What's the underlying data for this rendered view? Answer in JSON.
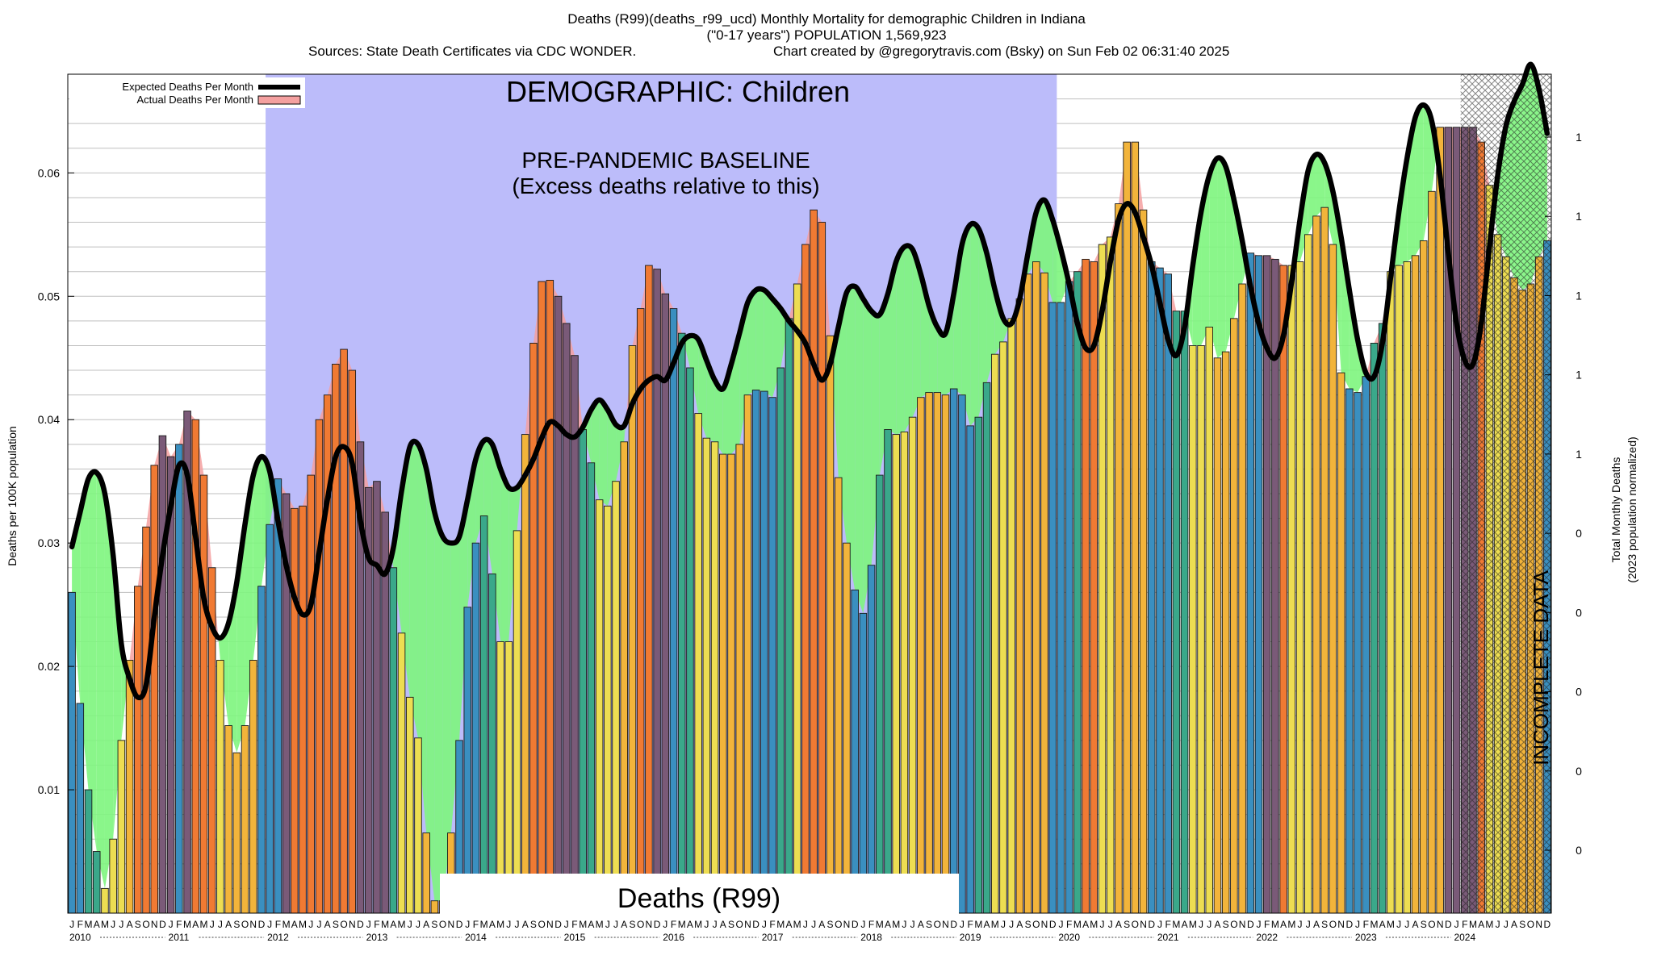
{
  "header": {
    "title": "Deaths (R99)(deaths_r99_ucd) Monthly Mortality for demographic Children in Indiana",
    "subtitle": "(\"0-17 years\") POPULATION 1,569,923",
    "sources": "Sources: State Death Certificates via CDC WONDER.",
    "credit": "Chart created by @gregorytravis.com (Bsky) on Sun Feb 02 06:31:40 2025"
  },
  "legend": {
    "expected_label": "Expected Deaths Per Month",
    "actual_label": "Actual Deaths Per Month",
    "expected_color": "#000000",
    "actual_color": "#f4a0a0"
  },
  "annotations": {
    "demographic": "DEMOGRAPHIC: Children",
    "baseline_line1": "PRE-PANDEMIC BASELINE",
    "baseline_line2": "(Excess deaths relative to this)",
    "cause": "Deaths (R99)",
    "incomplete": "INCOMPLETE DATA"
  },
  "colors": {
    "baseline_band": "#bcbcfa",
    "excess_fill": "#f4a0a0",
    "deficit_fill": "#7df57d",
    "expected_line": "#000000"
  },
  "chart_data": {
    "type": "bar",
    "ylabel": "Deaths per 100K population",
    "y2label_line1": "Total Monthly Deaths",
    "y2label_line2": "(2023 population normalized)",
    "ylim": [
      0,
      0.068
    ],
    "yticks": [
      0.01,
      0.02,
      0.03,
      0.04,
      0.05,
      0.06
    ],
    "ytick_labels": [
      "0.01",
      "0.02",
      "0.03",
      "0.04",
      "0.05",
      "0.06"
    ],
    "y2tick_labels": [
      "1",
      "1",
      "1",
      "1",
      "1",
      "0",
      "0",
      "0",
      "0",
      "0"
    ],
    "month_letters": [
      "J",
      "F",
      "M",
      "A",
      "M",
      "J",
      "J",
      "A",
      "S",
      "O",
      "N",
      "D"
    ],
    "years": [
      "2010",
      "2011",
      "2012",
      "2013",
      "2014",
      "2015",
      "2016",
      "2017",
      "2018",
      "2019",
      "2020",
      "2021",
      "2022",
      "2023",
      "2024"
    ],
    "baseline_period": [
      "2012-01",
      "2019-12"
    ],
    "incomplete_period": [
      "2024-02",
      "2024-12"
    ],
    "actual_deaths_per_100k": [
      0.026,
      0.017,
      0.01,
      0.005,
      0.002,
      0.006,
      0.014,
      0.0205,
      0.0265,
      0.0313,
      0.0363,
      0.0387,
      0.037,
      0.038,
      0.0407,
      0.04,
      0.0355,
      0.028,
      0.0205,
      0.0152,
      0.013,
      0.0152,
      0.0205,
      0.0265,
      0.0315,
      0.0352,
      0.034,
      0.0328,
      0.033,
      0.0355,
      0.04,
      0.042,
      0.0445,
      0.0457,
      0.044,
      0.0382,
      0.0345,
      0.035,
      0.0325,
      0.028,
      0.0227,
      0.0175,
      0.0142,
      0.0065,
      0.001,
      0.001,
      0.0065,
      0.014,
      0.0248,
      0.03,
      0.0322,
      0.0275,
      0.022,
      0.022,
      0.031,
      0.0388,
      0.0462,
      0.0512,
      0.0513,
      0.05,
      0.0478,
      0.0452,
      0.0392,
      0.0365,
      0.0335,
      0.033,
      0.035,
      0.0382,
      0.046,
      0.049,
      0.0525,
      0.0522,
      0.0502,
      0.049,
      0.047,
      0.0442,
      0.0405,
      0.0385,
      0.0382,
      0.0372,
      0.0372,
      0.038,
      0.042,
      0.0424,
      0.0423,
      0.0418,
      0.0442,
      0.0482,
      0.051,
      0.0542,
      0.057,
      0.056,
      0.0468,
      0.0353,
      0.03,
      0.0262,
      0.0243,
      0.0282,
      0.0355,
      0.0392,
      0.0388,
      0.039,
      0.0402,
      0.0418,
      0.0422,
      0.0422,
      0.042,
      0.0425,
      0.042,
      0.0395,
      0.0402,
      0.043,
      0.0453,
      0.0463,
      0.0482,
      0.0498,
      0.0518,
      0.0528,
      0.0519,
      0.0495,
      0.0495,
      0.0512,
      0.052,
      0.053,
      0.0528,
      0.0542,
      0.0548,
      0.0575,
      0.0625,
      0.0625,
      0.057,
      0.0528,
      0.0523,
      0.0518,
      0.0488,
      0.0488,
      0.046,
      0.046,
      0.0475,
      0.045,
      0.0455,
      0.0482,
      0.051,
      0.0535,
      0.0533,
      0.0533,
      0.053,
      0.0525,
      0.0525,
      0.0528,
      0.055,
      0.0565,
      0.0572,
      0.0542,
      0.0438,
      0.0425,
      0.0422,
      0.0435,
      0.0462,
      0.0478,
      0.052,
      0.0525,
      0.0528,
      0.0533,
      0.0545,
      0.0585,
      0.0637,
      0.0637,
      0.0637,
      0.0637,
      0.0637,
      0.0625,
      0.059,
      0.055,
      0.0532,
      0.0515,
      0.0505,
      0.051,
      0.0532,
      0.0545
    ],
    "expected_deaths_per_100k": [
      0.0297,
      0.0325,
      0.0352,
      0.0357,
      0.034,
      0.029,
      0.0218,
      0.019,
      0.0175,
      0.0185,
      0.024,
      0.029,
      0.033,
      0.0363,
      0.0355,
      0.0305,
      0.0255,
      0.0232,
      0.0223,
      0.0235,
      0.0268,
      0.0315,
      0.0355,
      0.037,
      0.0358,
      0.0318,
      0.0282,
      0.0256,
      0.0242,
      0.025,
      0.0292,
      0.0335,
      0.037,
      0.0378,
      0.0365,
      0.0318,
      0.0288,
      0.0282,
      0.0275,
      0.0296,
      0.0342,
      0.0378,
      0.038,
      0.036,
      0.0325,
      0.0305,
      0.03,
      0.0305,
      0.0335,
      0.0368,
      0.0383,
      0.038,
      0.036,
      0.0345,
      0.0345,
      0.0355,
      0.0368,
      0.0385,
      0.0398,
      0.0395,
      0.0388,
      0.0386,
      0.0394,
      0.0408,
      0.0416,
      0.0408,
      0.0396,
      0.0395,
      0.0413,
      0.0425,
      0.0432,
      0.0435,
      0.0432,
      0.0446,
      0.0462,
      0.0468,
      0.0465,
      0.0448,
      0.0432,
      0.0425,
      0.0445,
      0.047,
      0.0495,
      0.0505,
      0.0505,
      0.0498,
      0.049,
      0.048,
      0.0472,
      0.0462,
      0.0445,
      0.0432,
      0.0445,
      0.0475,
      0.0503,
      0.0508,
      0.0498,
      0.0488,
      0.0485,
      0.0502,
      0.0528,
      0.054,
      0.0538,
      0.0518,
      0.0492,
      0.0475,
      0.047,
      0.0502,
      0.0542,
      0.0558,
      0.0555,
      0.0535,
      0.0505,
      0.0482,
      0.0478,
      0.0498,
      0.0535,
      0.0568,
      0.0578,
      0.0562,
      0.0538,
      0.051,
      0.0478,
      0.0458,
      0.046,
      0.0488,
      0.0528,
      0.0562,
      0.0575,
      0.0568,
      0.0548,
      0.0525,
      0.0495,
      0.0465,
      0.0452,
      0.0475,
      0.0525,
      0.0568,
      0.0598,
      0.0612,
      0.0605,
      0.0578,
      0.0545,
      0.0508,
      0.0478,
      0.0458,
      0.045,
      0.0468,
      0.0512,
      0.0562,
      0.0602,
      0.0615,
      0.0608,
      0.0585,
      0.0548,
      0.0505,
      0.0465,
      0.0438,
      0.0435,
      0.0462,
      0.0515,
      0.0568,
      0.0612,
      0.0645,
      0.0655,
      0.0642,
      0.0598,
      0.0535,
      0.0478,
      0.0448,
      0.0445,
      0.0478,
      0.054,
      0.0598,
      0.0638,
      0.0658,
      0.0672,
      0.0688,
      0.0668,
      0.0632
    ]
  }
}
